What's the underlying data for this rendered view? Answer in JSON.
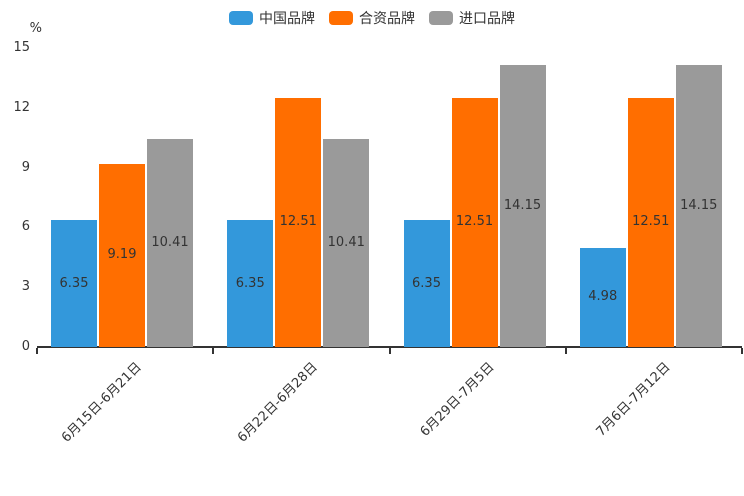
{
  "chart_data": {
    "type": "bar",
    "title": "",
    "unit_label": "%",
    "categories": [
      "6月15日-6月21日",
      "6月22日-6月28日",
      "6月29日-7月5日",
      "7月6日-7月12日"
    ],
    "series": [
      {
        "name": "中国品牌",
        "color": "#3398DB",
        "values": [
          6.35,
          6.35,
          6.35,
          4.98
        ]
      },
      {
        "name": "合资品牌",
        "color": "#FF6E00",
        "values": [
          9.19,
          12.51,
          12.51,
          12.51
        ]
      },
      {
        "name": "进口品牌",
        "color": "#9A9A9A",
        "values": [
          10.41,
          10.41,
          14.15,
          14.15
        ]
      }
    ],
    "y_axis": {
      "min": 0,
      "max": 15,
      "ticks": [
        0,
        3,
        6,
        9,
        12,
        15
      ]
    },
    "legend_position": "top",
    "grid": false,
    "value_labels": "inside-center",
    "bar_label_color": "#333333",
    "axis_color": "#333333",
    "background_color": "#ffffff"
  }
}
